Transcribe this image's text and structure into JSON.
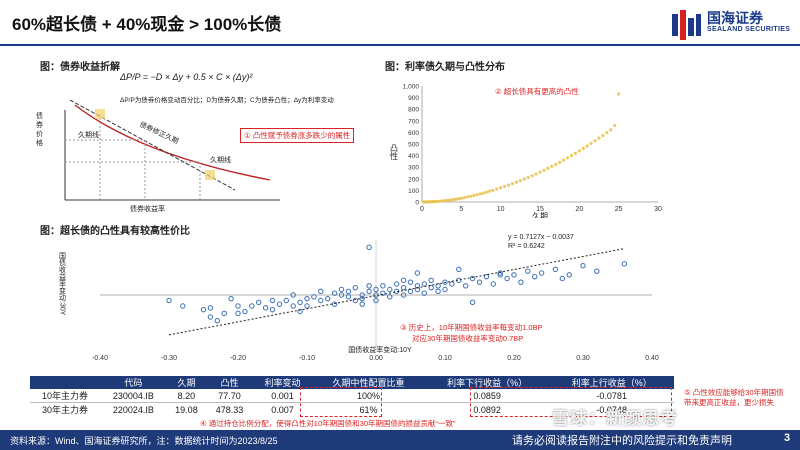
{
  "header": {
    "title": "60%超长债 + 40%现金 > 100%长债",
    "logo_cn": "国海证券",
    "logo_en": "SEALAND SECURITIES"
  },
  "fig1": {
    "title": "图：债券收益折解",
    "formula": "ΔP/P = −D × Δy + 0.5 × C × (Δy)²",
    "formula_note": "ΔP/P为债券价格变动百分比；D为债券久期；C为债券凸性；Δy为利率变动",
    "ylabel": "债券价格",
    "xlabel": "债券收益率",
    "curve_label": "债券修正久期",
    "dur_label_1": "久期线",
    "dur_label_2": "久期线",
    "annotation": "① 凸性赋予债券涨多跌少的属性"
  },
  "fig2": {
    "title": "图：利率债久期与凸性分布",
    "annotation": "② 超长债具有更高的凸性",
    "chart_data": {
      "type": "scatter",
      "xlabel": "久期",
      "ylabel": "凸性",
      "xlim": [
        0,
        30
      ],
      "ylim": [
        0,
        1000
      ],
      "xticks": [
        0,
        5,
        10,
        15,
        20,
        25,
        30
      ],
      "yticks": [
        0,
        100,
        200,
        300,
        400,
        500,
        600,
        700,
        800,
        900,
        1000
      ],
      "color": "#e8c14a",
      "x": [
        0.2,
        0.4,
        0.6,
        0.8,
        1.0,
        1.2,
        1.4,
        1.6,
        1.8,
        2.0,
        2.3,
        2.6,
        2.9,
        3.2,
        3.5,
        3.8,
        4.1,
        4.4,
        4.7,
        5.0,
        5.4,
        5.8,
        6.2,
        6.6,
        7.0,
        7.4,
        7.8,
        8.2,
        8.6,
        9.0,
        9.5,
        10.0,
        10.5,
        11.0,
        11.5,
        12.0,
        12.5,
        13.0,
        13.5,
        14.0,
        14.5,
        15.0,
        15.5,
        16.0,
        16.5,
        17.0,
        17.5,
        18.0,
        18.5,
        19.0,
        19.5,
        20.0,
        20.5,
        21.0,
        21.5,
        22.0,
        22.5,
        23.0,
        23.5,
        24.0,
        24.5,
        25.0
      ],
      "y": [
        0,
        1,
        1,
        1,
        2,
        2,
        3,
        4,
        4,
        5,
        7,
        9,
        11,
        13,
        16,
        19,
        22,
        25,
        29,
        32,
        38,
        44,
        50,
        56,
        63,
        70,
        77,
        85,
        93,
        101,
        112,
        123,
        134,
        146,
        158,
        170,
        183,
        197,
        211,
        226,
        241,
        257,
        273,
        290,
        307,
        324,
        342,
        361,
        380,
        400,
        420,
        441,
        462,
        483,
        505,
        528,
        551,
        574,
        598,
        622,
        660,
        930
      ]
    }
  },
  "fig3": {
    "title": "图：超长债的凸性具有较高性价比",
    "equation": "y = 0.7127x − 0.0037",
    "r2": "R² = 0.6242",
    "annotation_1": "③ 历史上，10年期国债收益率每变动1.0BP",
    "annotation_2": "对应30年期国债收益率变动0.7BP",
    "chart_data": {
      "type": "scatter",
      "xlabel": "国债收益率变动:10Y",
      "ylabel": "国债收益率变动:30Y",
      "xlim": [
        -0.4,
        0.4
      ],
      "ylim": [
        -0.3,
        0.3
      ],
      "xticks": [
        -0.4,
        -0.3,
        -0.2,
        -0.1,
        0.0,
        0.1,
        0.2,
        0.3,
        0.4
      ],
      "xtick_labels": [
        "-0.40",
        "-0.30",
        "-0.20",
        "-0.10",
        "0.00",
        "0.10",
        "0.20",
        "0.30",
        "0.40"
      ],
      "color": "#3a6fb4",
      "trend": {
        "slope": 0.7127,
        "intercept": -0.0037,
        "x_range": [
          -0.3,
          0.36
        ]
      },
      "x": [
        -0.3,
        -0.28,
        -0.25,
        -0.24,
        -0.23,
        -0.22,
        -0.21,
        -0.2,
        -0.2,
        -0.19,
        -0.18,
        -0.17,
        -0.16,
        -0.15,
        -0.15,
        -0.14,
        -0.13,
        -0.12,
        -0.12,
        -0.11,
        -0.1,
        -0.1,
        -0.09,
        -0.08,
        -0.08,
        -0.07,
        -0.06,
        -0.06,
        -0.05,
        -0.05,
        -0.04,
        -0.04,
        -0.03,
        -0.03,
        -0.02,
        -0.02,
        -0.01,
        -0.01,
        0.0,
        0.0,
        0.0,
        0.01,
        0.01,
        0.02,
        0.02,
        0.03,
        0.03,
        0.04,
        0.04,
        0.05,
        0.05,
        0.06,
        0.06,
        0.07,
        0.07,
        0.08,
        0.08,
        0.09,
        0.09,
        0.1,
        0.1,
        0.11,
        0.12,
        0.13,
        0.14,
        0.15,
        0.16,
        0.17,
        0.18,
        0.19,
        0.2,
        0.21,
        0.22,
        0.23,
        0.24,
        0.26,
        0.28,
        0.3,
        0.32,
        0.36,
        -0.01,
        0.14,
        0.18,
        -0.24,
        0.04,
        -0.11,
        0.06,
        -0.02,
        0.12,
        0.27
      ],
      "y": [
        -0.03,
        -0.06,
        -0.08,
        -0.12,
        -0.14,
        -0.1,
        -0.02,
        -0.1,
        -0.06,
        -0.09,
        -0.06,
        -0.04,
        -0.07,
        -0.03,
        -0.08,
        -0.05,
        -0.03,
        -0.06,
        0.0,
        -0.04,
        -0.02,
        -0.06,
        -0.01,
        -0.03,
        0.02,
        -0.02,
        0.01,
        -0.05,
        0.0,
        0.03,
        -0.01,
        0.02,
        -0.03,
        0.04,
        0.0,
        -0.02,
        0.02,
        0.05,
        0.0,
        -0.03,
        0.03,
        0.01,
        0.05,
        -0.01,
        0.03,
        0.02,
        0.06,
        0.0,
        0.04,
        0.02,
        0.07,
        0.03,
        0.05,
        0.01,
        0.06,
        0.04,
        0.08,
        0.02,
        0.05,
        0.07,
        0.03,
        0.06,
        0.08,
        0.05,
        0.09,
        0.07,
        0.1,
        0.06,
        0.12,
        0.09,
        0.11,
        0.07,
        0.13,
        0.1,
        0.12,
        0.14,
        0.11,
        0.16,
        0.13,
        0.17,
        0.26,
        -0.04,
        0.11,
        -0.07,
        0.08,
        -0.09,
        0.12,
        -0.05,
        0.14,
        0.09
      ]
    }
  },
  "table": {
    "headers": [
      "代码",
      "久期",
      "凸性",
      "利率变动",
      "久期中性配置比重",
      "利率下行收益（%）",
      "利率上行收益（%）"
    ],
    "rows": [
      [
        "10年主力券",
        "230004.IB",
        "8.20",
        "77.70",
        "0.001",
        "100%",
        "0.0859",
        "-0.0781"
      ],
      [
        "30年主力券",
        "220024.IB",
        "19.08",
        "478.33",
        "0.007",
        "61%",
        "0.0892",
        "-0.0748"
      ]
    ],
    "annotation_4": "④ 通过持仓比例分配，使得凸性对10年期国债和30年期国债的损益贡献“一致”",
    "annotation_5": "⑤ 凸性效应能够给30年期国债带来更高正收益，更少损失"
  },
  "footer": {
    "source": "资料来源：Wind、国海证券研究所，注：数据统计时间为2023/8/25",
    "disclaimer": "请务必阅读报告附注中的风险提示和免责声明",
    "page": "3",
    "watermark": "雪球：新颜思考"
  }
}
